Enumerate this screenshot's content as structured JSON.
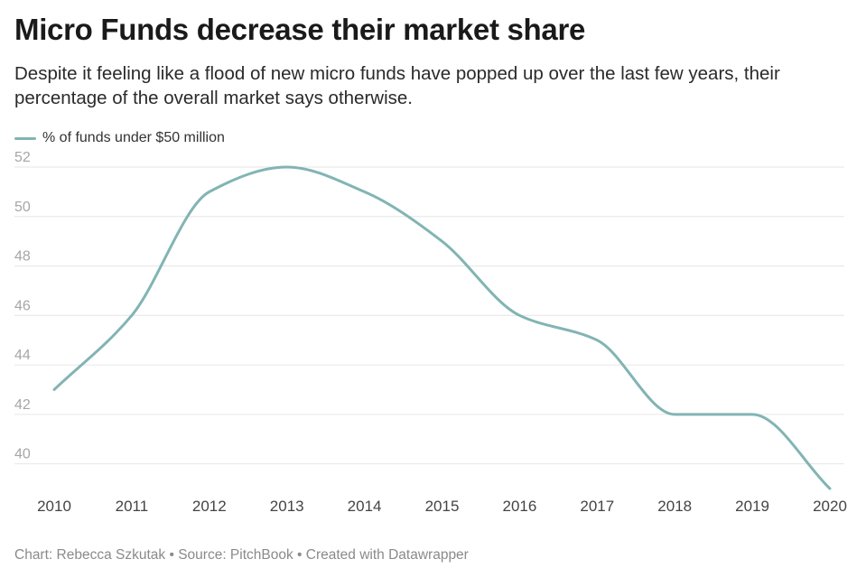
{
  "title": "Micro Funds decrease their market share",
  "subtitle": "Despite it feeling like a flood of new micro funds have popped up over the last few years, their percentage of the overall market says otherwise.",
  "footer": {
    "credit": "Chart: Rebecca Szkutak",
    "separator": "•",
    "source": "Source: PitchBook",
    "tool": "Created with Datawrapper"
  },
  "colors": {
    "line": "#82b4b4",
    "grid": "#e6e6e6"
  },
  "chart_data": {
    "type": "line",
    "title": "Micro Funds decrease their market share",
    "xlabel": "",
    "ylabel": "",
    "x": [
      2010,
      2011,
      2012,
      2013,
      2014,
      2015,
      2016,
      2017,
      2018,
      2019,
      2020
    ],
    "series": [
      {
        "name": "% of funds under $50 million",
        "values": [
          43,
          46,
          51,
          52,
          51,
          49,
          46,
          45,
          42,
          42,
          39
        ]
      }
    ],
    "ylim": [
      39,
      52
    ],
    "yticks": [
      40,
      42,
      44,
      46,
      48,
      50,
      52
    ],
    "xticks": [
      "2010",
      "2011",
      "2012",
      "2013",
      "2014",
      "2015",
      "2016",
      "2017",
      "2018",
      "2019",
      "2020"
    ],
    "grid": true,
    "legend": "top-left"
  }
}
